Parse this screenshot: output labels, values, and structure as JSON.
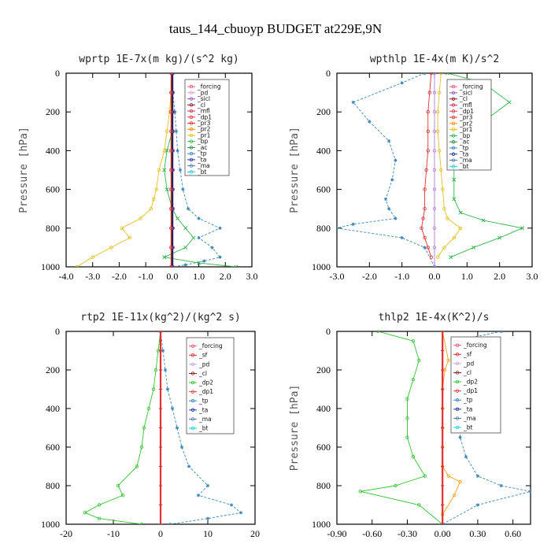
{
  "figure": {
    "title": "taus_144_cbuoyp  BUDGET at229E,9N"
  },
  "chart_data": [
    {
      "type": "line",
      "title": "wprtp  1E-7x(m kg)/(s^2 kg)",
      "ylabel": "Pressure [hPa]",
      "xlim": [
        -4.0,
        3.0
      ],
      "ylim": [
        1000,
        0
      ],
      "xticks": [
        "-4.0",
        "-3.0",
        "-2.0",
        "-1.0",
        "0.0",
        "1.0",
        "2.0",
        "3.0"
      ],
      "yticks": [
        "0",
        "200",
        "400",
        "600",
        "800",
        "1000"
      ],
      "legend": [
        "_forcing",
        "_pd",
        "_sicl",
        "_cl",
        "_mfl",
        "_dp1",
        "_pr3",
        "_pr2",
        "_pr1",
        "_bp",
        "_ac",
        "_tp",
        "_ta",
        "_ma",
        "_bt"
      ],
      "series": [
        {
          "name": "_bp",
          "color": "#33b34d",
          "marker": "x",
          "x": [
            0.0,
            0.0,
            0.02,
            0.0,
            -0.2,
            -0.3,
            -0.2,
            0.0,
            0.2,
            0.5,
            0.8,
            0.5,
            -0.3,
            1.0,
            2.4
          ],
          "y": [
            0,
            100,
            200,
            300,
            400,
            500,
            600,
            700,
            750,
            800,
            850,
            900,
            950,
            980,
            1000
          ]
        },
        {
          "name": "_tp",
          "color": "#3a86b5",
          "marker": "star",
          "x": [
            0.0,
            0.02,
            0.1,
            0.15,
            0.2,
            0.3,
            0.4,
            0.6,
            1.0,
            1.8,
            1.0,
            1.5,
            1.8,
            1.2,
            0.5,
            0.0
          ],
          "y": [
            0,
            100,
            200,
            300,
            400,
            500,
            600,
            700,
            750,
            800,
            850,
            900,
            950,
            970,
            990,
            1000
          ]
        },
        {
          "name": "_pr1",
          "color": "#e5c020",
          "marker": "circle",
          "x": [
            0.0,
            -0.05,
            -0.1,
            -0.2,
            -0.3,
            -0.5,
            -0.6,
            -0.7,
            -0.8,
            -1.2,
            -1.9,
            -1.6,
            -2.3,
            -3.0,
            -3.6
          ],
          "y": [
            0,
            100,
            200,
            300,
            400,
            500,
            600,
            650,
            700,
            750,
            800,
            850,
            900,
            950,
            1000
          ]
        },
        {
          "name": "_forcing",
          "color": "#111111",
          "marker": "circle",
          "x": [
            0.0,
            0.0,
            0.0,
            0.0,
            0.0,
            0.0,
            0.0,
            0.0,
            0.0,
            0.0,
            0.0
          ],
          "y": [
            0,
            100,
            200,
            300,
            400,
            500,
            600,
            700,
            800,
            900,
            1000
          ]
        },
        {
          "name": "_sicl",
          "color": "#7b3fb0",
          "marker": "circle",
          "x": [
            0.03,
            0.03,
            0.03,
            0.03,
            0.03,
            0.03,
            0.03,
            0.03,
            0.03,
            0.03,
            0.03
          ],
          "y": [
            0,
            100,
            200,
            300,
            400,
            500,
            600,
            700,
            800,
            900,
            1000
          ]
        },
        {
          "name": "_dp1",
          "color": "#e03030",
          "marker": "circle",
          "x": [
            -0.05,
            -0.05,
            -0.05,
            -0.05,
            -0.05,
            -0.05,
            -0.05,
            -0.05,
            -0.05,
            -0.05,
            -0.05
          ],
          "y": [
            0,
            100,
            200,
            300,
            400,
            500,
            600,
            700,
            800,
            900,
            1000
          ]
        }
      ]
    },
    {
      "type": "line",
      "title": "wpthlp  1E-4x(m K)/s^2",
      "ylabel": "Pressure [hPa]",
      "xlim": [
        -3.0,
        3.0
      ],
      "ylim": [
        1000,
        0
      ],
      "xticks": [
        "-3.0",
        "-2.0",
        "-1.0",
        "0.0",
        "1.0",
        "2.0",
        "3.0"
      ],
      "yticks": [
        "0",
        "200",
        "400",
        "600",
        "800",
        "1000"
      ],
      "legend": [
        "_forcing",
        "_sicl",
        "_cl",
        "_mfl",
        "_dp1",
        "_pr3",
        "_pr2",
        "_pr1",
        "_bp",
        "_ac",
        "_tp",
        "_ta",
        "_ma",
        "_bt"
      ],
      "series": [
        {
          "name": "_bp",
          "color": "#33b34d",
          "marker": "x",
          "x": [
            0.4,
            1.5,
            2.3,
            1.5,
            0.8,
            0.6,
            0.6,
            0.6,
            0.8,
            1.5,
            2.7,
            2.0,
            1.2,
            0.5
          ],
          "y": [
            0,
            50,
            150,
            250,
            350,
            450,
            550,
            650,
            720,
            760,
            800,
            850,
            900,
            950
          ]
        },
        {
          "name": "_tp",
          "color": "#3a86b5",
          "marker": "star",
          "x": [
            -0.3,
            -1.0,
            -2.5,
            -2.0,
            -1.4,
            -1.2,
            -1.3,
            -1.5,
            -1.4,
            -1.2,
            -2.5,
            -3.0,
            -1.0,
            -0.3,
            0.0
          ],
          "y": [
            0,
            50,
            150,
            250,
            350,
            450,
            550,
            650,
            700,
            750,
            780,
            800,
            850,
            900,
            1000
          ]
        },
        {
          "name": "_pr1",
          "color": "#e5c020",
          "marker": "circle",
          "x": [
            0.2,
            0.15,
            0.1,
            0.1,
            0.15,
            0.2,
            0.25,
            0.3,
            0.4,
            0.8,
            0.6,
            0.3,
            0.1
          ],
          "y": [
            0,
            100,
            200,
            300,
            400,
            500,
            600,
            700,
            750,
            800,
            850,
            900,
            950
          ]
        },
        {
          "name": "_dp1",
          "color": "#e03030",
          "marker": "circle",
          "x": [
            -0.1,
            -0.15,
            -0.2,
            -0.2,
            -0.2,
            -0.25,
            -0.3,
            -0.3,
            -0.35,
            -0.4,
            -0.3,
            -0.2,
            -0.1
          ],
          "y": [
            0,
            100,
            200,
            300,
            400,
            500,
            600,
            700,
            750,
            800,
            850,
            900,
            950
          ]
        },
        {
          "name": "_sicl",
          "color": "#b27fd8",
          "marker": "circle",
          "x": [
            0.0,
            0.0,
            0.0,
            0.0,
            0.0,
            0.0,
            0.0,
            0.0,
            0.0,
            0.0,
            0.0
          ],
          "y": [
            0,
            100,
            200,
            300,
            400,
            500,
            600,
            700,
            800,
            900,
            1000
          ]
        }
      ]
    },
    {
      "type": "line",
      "title": "rtp2  1E-11x(kg^2)/(kg^2 s)",
      "ylabel": "",
      "xlim": [
        -20,
        20
      ],
      "ylim": [
        1000,
        0
      ],
      "xticks": [
        "-20",
        "-10",
        "0",
        "10",
        "20"
      ],
      "yticks": [
        "0",
        "200",
        "400",
        "600",
        "800",
        "1000"
      ],
      "legend": [
        "_forcing",
        "_sf",
        "_pd",
        "_cl",
        "_dp2",
        "_dp1",
        "_tp",
        "_ta",
        "_ma",
        "_bt"
      ],
      "series": [
        {
          "name": "_dp1",
          "color": "#33c233",
          "marker": "circle",
          "x": [
            0.0,
            -0.5,
            -1.0,
            -1.5,
            -2.5,
            -3.5,
            -4.0,
            -5.0,
            -9.0,
            -8.0,
            -13.0,
            -16.0,
            -13.0,
            -4.0
          ],
          "y": [
            0,
            100,
            200,
            300,
            400,
            500,
            600,
            700,
            800,
            850,
            900,
            940,
            970,
            1000
          ]
        },
        {
          "name": "_tp",
          "color": "#3a86b5",
          "marker": "star",
          "x": [
            0.0,
            0.5,
            1.0,
            1.5,
            2.5,
            3.5,
            4.5,
            6.0,
            10.0,
            8.0,
            15.0,
            17.0,
            10.0,
            2.0
          ],
          "y": [
            0,
            100,
            200,
            300,
            400,
            500,
            600,
            700,
            800,
            850,
            900,
            940,
            970,
            1000
          ]
        },
        {
          "name": "_sf",
          "color": "#e03030",
          "marker": "cross",
          "x": [
            0.0,
            0.0,
            0.0,
            0.0,
            0.0,
            0.0,
            0.0,
            0.0,
            0.0,
            0.0,
            0.0
          ],
          "y": [
            0,
            100,
            200,
            300,
            400,
            500,
            600,
            700,
            800,
            900,
            1000
          ]
        }
      ]
    },
    {
      "type": "line",
      "title": "thlp2  1E-4x(K^2)/s",
      "ylabel": "Pressure [hPa]",
      "xlim": [
        -0.9,
        0.75
      ],
      "ylim": [
        1000,
        0
      ],
      "xticks": [
        "-0.90",
        "-0.60",
        "-0.30",
        "0.00",
        "0.30",
        "0.60"
      ],
      "yticks": [
        "0",
        "200",
        "400",
        "600",
        "800",
        "1000"
      ],
      "legend": [
        "_forcing",
        "_sf",
        "_pd",
        "_cl",
        "_dp2",
        "_dp1",
        "_tp",
        "_ta",
        "_ma",
        "_bt"
      ],
      "series": [
        {
          "name": "_dp1",
          "color": "#33c233",
          "marker": "circle",
          "x": [
            -0.55,
            -0.25,
            -0.2,
            -0.25,
            -0.3,
            -0.3,
            -0.3,
            -0.25,
            -0.15,
            -0.4,
            -0.7,
            -0.2,
            0.0
          ],
          "y": [
            0,
            50,
            150,
            250,
            350,
            450,
            550,
            650,
            750,
            800,
            830,
            900,
            1000
          ]
        },
        {
          "name": "_tp",
          "color": "#3a86b5",
          "marker": "star",
          "x": [
            0.5,
            0.1,
            0.2,
            0.2,
            0.15,
            0.15,
            0.15,
            0.2,
            0.3,
            0.5,
            0.75,
            0.3,
            0.0
          ],
          "y": [
            0,
            50,
            150,
            250,
            350,
            450,
            550,
            650,
            750,
            800,
            830,
            900,
            1000
          ]
        },
        {
          "name": "_pd",
          "color": "#ffa020",
          "marker": "circle",
          "x": [
            0.0,
            0.05,
            0.02,
            0.0,
            0.0,
            0.0,
            0.0,
            0.0,
            0.05,
            0.15,
            0.1,
            0.0
          ],
          "y": [
            0,
            150,
            200,
            300,
            400,
            500,
            600,
            700,
            750,
            780,
            850,
            950
          ]
        },
        {
          "name": "_sf",
          "color": "#e03030",
          "marker": "cross",
          "x": [
            0.0,
            0.0,
            0.0,
            0.0,
            0.0,
            0.0,
            0.0,
            0.0,
            0.0,
            0.0,
            0.0
          ],
          "y": [
            0,
            100,
            200,
            300,
            400,
            500,
            600,
            700,
            800,
            900,
            1000
          ]
        }
      ]
    }
  ]
}
